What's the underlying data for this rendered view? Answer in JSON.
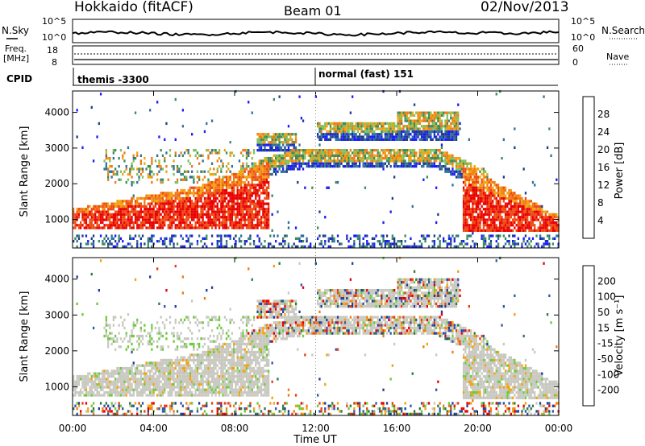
{
  "header": {
    "station": "Hokkaido (fitACF)",
    "beam": "Beam 01",
    "date": "02/Nov/2013"
  },
  "top_panel": {
    "left_label": "N.Sky",
    "right_label": "N.Search",
    "left_ticks": [
      "10^5",
      "10^0"
    ],
    "right_ticks": [
      "10^5",
      "10^0"
    ]
  },
  "freq_panel": {
    "label_line1": "Freq.",
    "label_line2": "[MHz]",
    "left_ticks": [
      "18",
      "8"
    ],
    "right_label": "Nave",
    "right_ticks": [
      "60",
      "0"
    ]
  },
  "cpid": {
    "label": "CPID",
    "entries": [
      "themis -3300",
      "normal (fast) 151"
    ]
  },
  "colors": {
    "power_scale": [
      "#1a1aff",
      "#1e3c8c",
      "#2f6f9a",
      "#3b8b5a",
      "#7fc15a",
      "#f2a20c",
      "#f07a14",
      "#ee4a12",
      "#e80000"
    ],
    "velocity_scale": [
      "#1e3c9a",
      "#2e56a8",
      "#2b7a3a",
      "#6acb3a",
      "#c8c8c0",
      "#f2a20c",
      "#f07a14",
      "#ea3c12",
      "#e80000"
    ]
  },
  "chart_data": [
    {
      "type": "heatmap",
      "ylabel": "Slant Range [km]",
      "y_ticks": [
        "1000",
        "2000",
        "3000",
        "4000"
      ],
      "ylim": [
        200,
        4600
      ],
      "xlim": [
        "00:00",
        "24:00"
      ],
      "colorbar_label": "Power [dB]",
      "colorbar_ticks": [
        "28",
        "24",
        "20",
        "16",
        "12",
        "8",
        "4"
      ],
      "colorbar_range": [
        0,
        30
      ]
    },
    {
      "type": "heatmap",
      "ylabel": "Slant Range [km]",
      "y_ticks": [
        "1000",
        "2000",
        "3000",
        "4000"
      ],
      "ylim": [
        200,
        4600
      ],
      "xlabel": "Time UT",
      "x_ticks": [
        "00:00",
        "04:00",
        "08:00",
        "12:00",
        "16:00",
        "20:00",
        "00:00"
      ],
      "xlim": [
        "00:00",
        "24:00"
      ],
      "colorbar_label": "Velocity [m s⁻¹]",
      "colorbar_ticks": [
        "200",
        "100",
        "50",
        "15",
        "-15",
        "-50",
        "-100",
        "-200"
      ],
      "colorbar_range": [
        -250,
        250
      ]
    }
  ]
}
